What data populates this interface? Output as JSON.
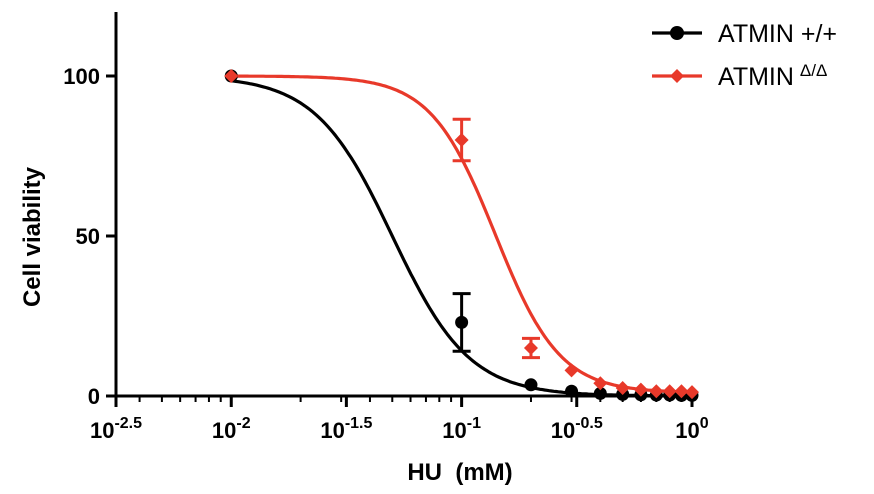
{
  "chart_data": {
    "type": "scatter",
    "title": "",
    "xlabel": "HU  (mM)",
    "ylabel": "Cell viability",
    "x_scale": "log10",
    "xlim": [
      0.00316,
      1.0
    ],
    "ylim": [
      0,
      120
    ],
    "x_ticks": [
      {
        "value": 0.00316,
        "base": "10",
        "exp": "-2.5"
      },
      {
        "value": 0.01,
        "base": "10",
        "exp": "-2"
      },
      {
        "value": 0.0316,
        "base": "10",
        "exp": "-1.5"
      },
      {
        "value": 0.1,
        "base": "10",
        "exp": "-1"
      },
      {
        "value": 0.316,
        "base": "10",
        "exp": "-0.5"
      },
      {
        "value": 1.0,
        "base": "10",
        "exp": "0"
      }
    ],
    "y_ticks": [
      {
        "value": 0,
        "label": "0"
      },
      {
        "value": 50,
        "label": "50"
      },
      {
        "value": 100,
        "label": "100"
      }
    ],
    "legend_position": "top-right",
    "series": [
      {
        "name": "ATMIN +/+",
        "legend_main": "ATMIN +/+",
        "legend_sup": "",
        "color": "#000000",
        "marker": "circle",
        "x": [
          0.01,
          0.1,
          0.2,
          0.3,
          0.4,
          0.5,
          0.6,
          0.7,
          0.8,
          0.9,
          1.0
        ],
        "y": [
          100,
          23,
          3.5,
          1.5,
          0.8,
          0.5,
          0.4,
          0.3,
          0.3,
          0.2,
          0.2
        ],
        "error": [
          0,
          9,
          0,
          0,
          0,
          0,
          0,
          0,
          0,
          0,
          0
        ],
        "fit": {
          "top": 100,
          "bottom": 0,
          "ic50": 0.05,
          "hill": 2.6
        }
      },
      {
        "name": "ATMIN Δ/Δ",
        "legend_main": "ATMIN",
        "legend_sup": "Δ/Δ",
        "color": "#e8392a",
        "marker": "diamond",
        "x": [
          0.01,
          0.1,
          0.2,
          0.3,
          0.4,
          0.5,
          0.6,
          0.7,
          0.8,
          0.9,
          1.0
        ],
        "y": [
          100,
          80,
          15,
          8,
          4,
          2.5,
          2,
          1.5,
          1.5,
          1.5,
          1.2
        ],
        "error": [
          0,
          6.5,
          3,
          0,
          0,
          0,
          0,
          0,
          0,
          0,
          0
        ],
        "fit": {
          "top": 100,
          "bottom": 1,
          "ic50": 0.14,
          "hill": 3.1
        }
      }
    ]
  }
}
